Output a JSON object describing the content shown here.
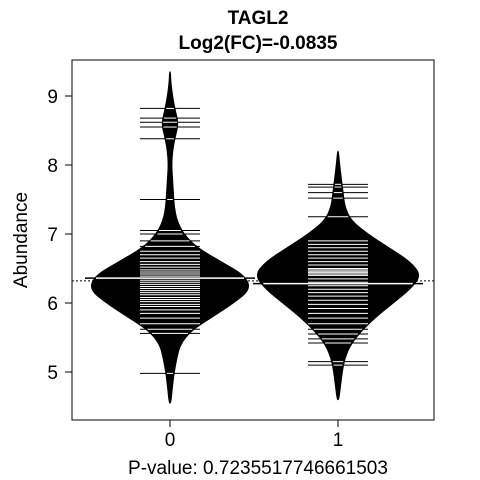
{
  "chart_data": {
    "type": "beanplot",
    "title": "TAGL2",
    "subtitle": "Log2(FC)=-0.0835",
    "xlabel": "P-value: 0.7235517746661503",
    "ylabel": "Abundance",
    "categories": [
      "0",
      "1"
    ],
    "ylim": [
      4.4,
      9.5
    ],
    "yticks": [
      5,
      6,
      7,
      8,
      9
    ],
    "overall_mean": 6.32,
    "groups": [
      {
        "category": "0",
        "mean": 6.36,
        "min": 4.55,
        "max": 9.35,
        "peak": 6.28,
        "density": [
          [
            4.55,
            0.01
          ],
          [
            4.8,
            0.03
          ],
          [
            5.0,
            0.05
          ],
          [
            5.2,
            0.08
          ],
          [
            5.4,
            0.12
          ],
          [
            5.6,
            0.25
          ],
          [
            5.8,
            0.5
          ],
          [
            6.0,
            0.75
          ],
          [
            6.2,
            0.95
          ],
          [
            6.4,
            0.88
          ],
          [
            6.6,
            0.6
          ],
          [
            6.8,
            0.32
          ],
          [
            7.0,
            0.16
          ],
          [
            7.2,
            0.08
          ],
          [
            7.4,
            0.05
          ],
          [
            7.6,
            0.04
          ],
          [
            7.8,
            0.03
          ],
          [
            8.0,
            0.02
          ],
          [
            8.2,
            0.03
          ],
          [
            8.4,
            0.06
          ],
          [
            8.6,
            0.1
          ],
          [
            8.8,
            0.06
          ],
          [
            9.0,
            0.03
          ],
          [
            9.2,
            0.01
          ],
          [
            9.35,
            0.005
          ]
        ],
        "observations": [
          4.98,
          5.56,
          5.62,
          5.7,
          5.78,
          5.85,
          5.9,
          5.95,
          5.98,
          6.02,
          6.05,
          6.08,
          6.12,
          6.15,
          6.18,
          6.21,
          6.24,
          6.27,
          6.3,
          6.33,
          6.36,
          6.39,
          6.42,
          6.45,
          6.48,
          6.52,
          6.56,
          6.6,
          6.65,
          6.7,
          6.75,
          6.82,
          6.9,
          7.0,
          7.05,
          7.5,
          8.38,
          8.55,
          8.62,
          8.68,
          8.82
        ]
      },
      {
        "category": "1",
        "mean": 6.28,
        "min": 4.6,
        "max": 8.2,
        "peak": 6.45,
        "density": [
          [
            4.6,
            0.01
          ],
          [
            4.8,
            0.03
          ],
          [
            5.0,
            0.05
          ],
          [
            5.2,
            0.08
          ],
          [
            5.4,
            0.15
          ],
          [
            5.6,
            0.28
          ],
          [
            5.8,
            0.45
          ],
          [
            6.0,
            0.65
          ],
          [
            6.2,
            0.85
          ],
          [
            6.4,
            0.98
          ],
          [
            6.6,
            0.85
          ],
          [
            6.8,
            0.6
          ],
          [
            7.0,
            0.35
          ],
          [
            7.2,
            0.15
          ],
          [
            7.4,
            0.08
          ],
          [
            7.6,
            0.06
          ],
          [
            7.8,
            0.04
          ],
          [
            8.0,
            0.02
          ],
          [
            8.2,
            0.005
          ]
        ],
        "observations": [
          5.1,
          5.15,
          5.42,
          5.48,
          5.55,
          5.62,
          5.7,
          5.78,
          5.85,
          5.92,
          5.98,
          6.04,
          6.1,
          6.15,
          6.2,
          6.25,
          6.3,
          6.35,
          6.4,
          6.42,
          6.44,
          6.46,
          6.48,
          6.5,
          6.55,
          6.6,
          6.65,
          6.7,
          6.75,
          6.8,
          6.85,
          6.9,
          7.25,
          7.52,
          7.6,
          7.68,
          7.72
        ]
      }
    ]
  }
}
